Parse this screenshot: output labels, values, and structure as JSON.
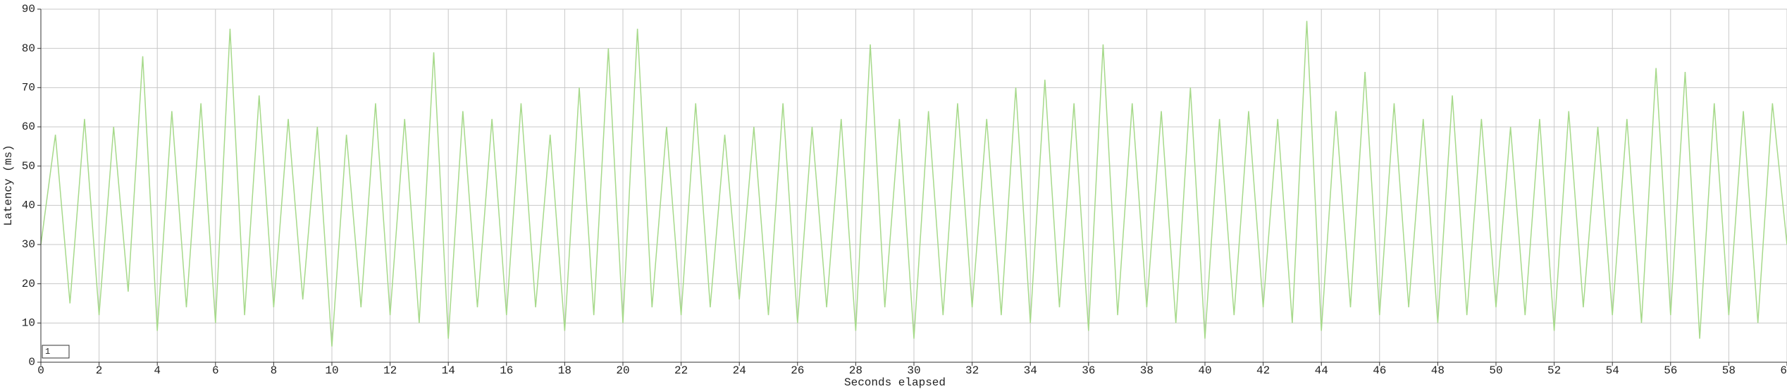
{
  "chart_data": {
    "type": "line",
    "x_label": "Seconds elapsed",
    "y_label": "Latency (ms)",
    "x": [
      0,
      0.5,
      1,
      1.5,
      2,
      2.5,
      3,
      3.5,
      4,
      4.5,
      5,
      5.5,
      6,
      6.5,
      7,
      7.5,
      8,
      8.5,
      9,
      9.5,
      10,
      10.5,
      11,
      11.5,
      12,
      12.5,
      13,
      13.5,
      14,
      14.5,
      15,
      15.5,
      16,
      16.5,
      17,
      17.5,
      18,
      18.5,
      19,
      19.5,
      20,
      20.5,
      21,
      21.5,
      22,
      22.5,
      23,
      23.5,
      24,
      24.5,
      25,
      25.5,
      26,
      26.5,
      27,
      27.5,
      28,
      28.5,
      29,
      29.5,
      30,
      30.5,
      31,
      31.5,
      32,
      32.5,
      33,
      33.5,
      34,
      34.5,
      35,
      35.5,
      36,
      36.5,
      37,
      37.5,
      38,
      38.5,
      39,
      39.5,
      40,
      40.5,
      41,
      41.5,
      42,
      42.5,
      43,
      43.5,
      44,
      44.5,
      45,
      45.5,
      46,
      46.5,
      47,
      47.5,
      48,
      48.5,
      49,
      49.5,
      50,
      50.5,
      51,
      51.5,
      52,
      52.5,
      53,
      53.5,
      54,
      54.5,
      55,
      55.5,
      56,
      56.5,
      57,
      57.5,
      58,
      58.5,
      59,
      59.5,
      60
    ],
    "series": [
      {
        "name": "1",
        "color": "#a6d98a",
        "values": [
          30,
          58,
          15,
          62,
          12,
          60,
          18,
          78,
          8,
          64,
          14,
          66,
          10,
          85,
          12,
          68,
          14,
          62,
          16,
          60,
          4,
          58,
          14,
          66,
          12,
          62,
          10,
          79,
          6,
          64,
          14,
          62,
          12,
          66,
          14,
          58,
          8,
          70,
          12,
          80,
          10,
          85,
          14,
          60,
          12,
          66,
          14,
          58,
          16,
          60,
          12,
          66,
          10,
          60,
          14,
          62,
          8,
          81,
          14,
          62,
          6,
          64,
          12,
          66,
          14,
          62,
          12,
          70,
          10,
          72,
          14,
          66,
          8,
          81,
          12,
          66,
          14,
          64,
          10,
          70,
          6,
          62,
          12,
          64,
          14,
          62,
          10,
          87,
          8,
          64,
          14,
          74,
          12,
          66,
          14,
          62,
          10,
          68,
          12,
          62,
          14,
          60,
          12,
          62,
          8,
          64,
          14,
          60,
          12,
          62,
          10,
          75,
          12,
          74,
          6,
          66,
          12,
          64,
          10,
          66,
          30
        ]
      }
    ],
    "xlim": [
      0,
      60
    ],
    "xticks": [
      0,
      2,
      4,
      6,
      8,
      10,
      12,
      14,
      16,
      18,
      20,
      22,
      24,
      26,
      28,
      30,
      32,
      34,
      36,
      38,
      40,
      42,
      44,
      46,
      48,
      50,
      52,
      54,
      56,
      58,
      60
    ],
    "ylim": [
      0,
      90
    ],
    "yticks": [
      0,
      10,
      20,
      30,
      40,
      50,
      60,
      70,
      80,
      90
    ],
    "grid": true,
    "legend": "lower left"
  }
}
